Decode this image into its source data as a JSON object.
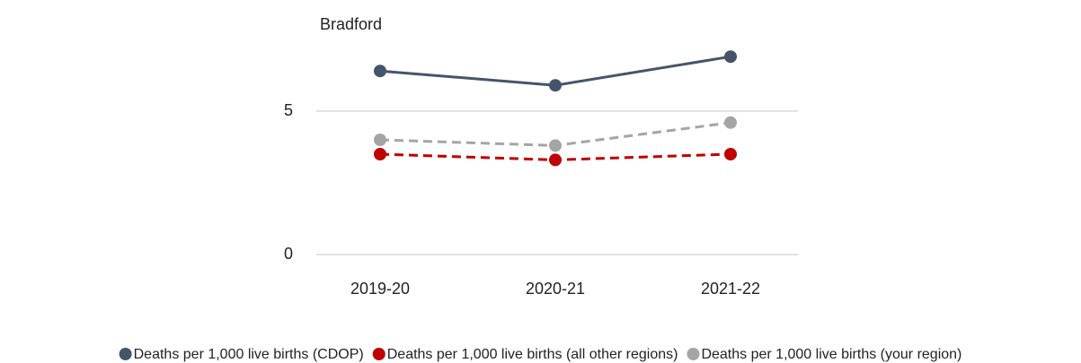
{
  "chart_data": {
    "type": "line",
    "title": "Bradford",
    "categories": [
      "2019-20",
      "2020-21",
      "2021-22"
    ],
    "series": [
      {
        "name": "Deaths per 1,000 live births (CDOP)",
        "color": "#44546a",
        "dashed": false,
        "values": [
          6.4,
          5.9,
          6.9
        ]
      },
      {
        "name": "Deaths per 1,000 live births (all other regions)",
        "color": "#c00000",
        "dashed": true,
        "values": [
          3.5,
          3.3,
          3.5
        ]
      },
      {
        "name": "Deaths per 1,000 live births (your region)",
        "color": "#a5a5a5",
        "dashed": true,
        "values": [
          4.0,
          3.8,
          4.6
        ]
      }
    ],
    "ylim": [
      0,
      7.5
    ],
    "yticks": [
      0,
      5
    ],
    "grid": true,
    "legend": "bottom"
  }
}
